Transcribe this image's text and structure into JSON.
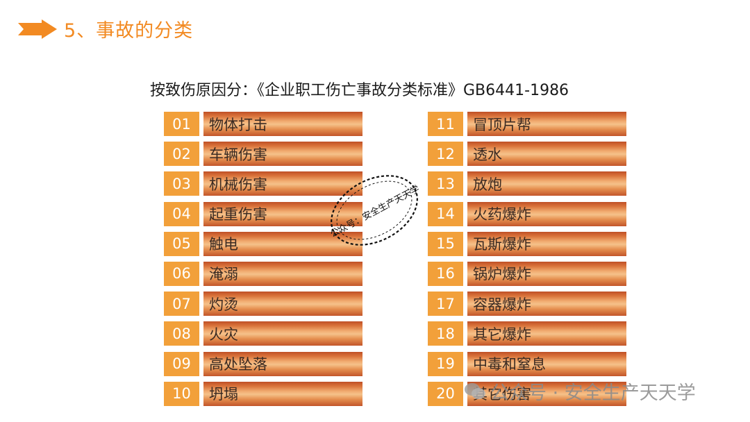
{
  "header": {
    "title": "5、事故的分类"
  },
  "subtitle": "按致伤原因分：《企业职工伤亡事故分类标准》GB6441-1986",
  "left_items": [
    {
      "num": "01",
      "label": "物体打击"
    },
    {
      "num": "02",
      "label": "车辆伤害"
    },
    {
      "num": "03",
      "label": "机械伤害"
    },
    {
      "num": "04",
      "label": "起重伤害"
    },
    {
      "num": "05",
      "label": "触电"
    },
    {
      "num": "06",
      "label": "淹溺"
    },
    {
      "num": "07",
      "label": "灼烫"
    },
    {
      "num": "08",
      "label": "火灾"
    },
    {
      "num": "09",
      "label": "高处坠落"
    },
    {
      "num": "10",
      "label": " 坍塌"
    }
  ],
  "right_items": [
    {
      "num": "11",
      "label": "冒顶片帮"
    },
    {
      "num": "12",
      "label": "透水"
    },
    {
      "num": "13",
      "label": "放炮"
    },
    {
      "num": "14",
      "label": "火药爆炸"
    },
    {
      "num": "15",
      "label": "瓦斯爆炸"
    },
    {
      "num": "16",
      "label": "锅炉爆炸"
    },
    {
      "num": "17",
      "label": "容器爆炸"
    },
    {
      "num": "18",
      "label": "其它爆炸"
    },
    {
      "num": "19",
      "label": "中毒和窒息"
    },
    {
      "num": "20",
      "label": "其它伤害"
    }
  ],
  "stamp": {
    "text": "公众号：安全生产天天学"
  },
  "watermark": {
    "text": "公众号 · 安全生产天天学"
  },
  "colors": {
    "accent": "#f28a22",
    "number_box": "#f2a03a",
    "bar": "#e58f4f"
  }
}
